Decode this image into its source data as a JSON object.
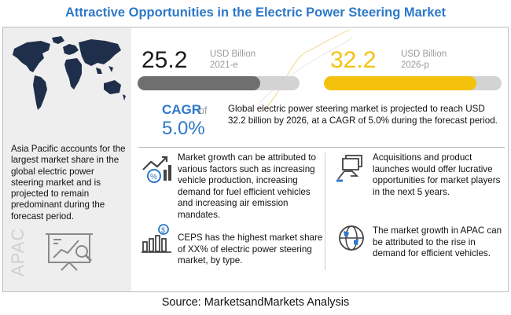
{
  "title": "Attractive Opportunities in the Electric Power Steering Market",
  "left_panel": {
    "text": "Asia Pacific accounts for the largest market share in the global electric power steering market and is projected to remain predominant during the forecast period.",
    "region_label": "APAC"
  },
  "market_2021": {
    "value": "25.2",
    "unit": "USD Billion",
    "year": "2021-e",
    "fill_fraction": 0.755,
    "color": "#6f6f6f"
  },
  "market_2026": {
    "value": "32.2",
    "unit": "USD Billion",
    "year": "2026-p",
    "fill_fraction": 0.86,
    "color": "#f4c20d"
  },
  "cagr": {
    "label": "CAGR",
    "of": "of",
    "value": "5.0%",
    "text": "Global electric power steering market is projected to reach USD 32.2 billion by 2026, at a CAGR of 5.0% during the forecast period."
  },
  "items": [
    {
      "text": "Market growth can be attributed to various factors such as increasing vehicle production, increasing demand for fuel efficient vehicles and increasing air emission mandates.",
      "icon": "growth-percent-icon"
    },
    {
      "text": "CEPS has the highest market share of  XX% of electric power steering market, by type.",
      "icon": "bar-chart-dollar-icon"
    },
    {
      "text": "Acquisitions and product launches would offer lucrative opportunities for market players in the next 5 years.",
      "icon": "handshake-money-icon"
    },
    {
      "text": "The market growth in APAC can be attributed to the rise in demand for efficient vehicles.",
      "icon": "globe-icon"
    }
  ],
  "source": "Source: MarketsandMarkets Analysis",
  "colors": {
    "accent": "#2e78c8",
    "grey_bar": "#6f6f6f",
    "gold_bar": "#f4c20d"
  }
}
